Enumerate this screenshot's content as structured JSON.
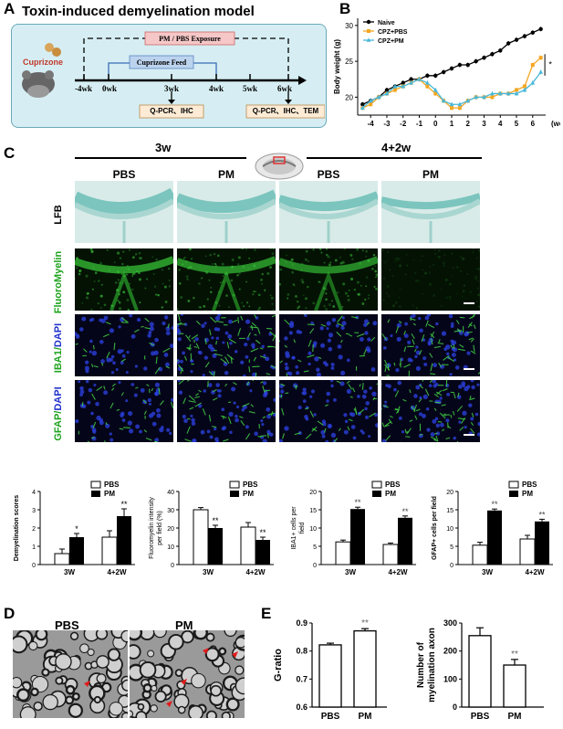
{
  "panels": {
    "A": "A",
    "B": "B",
    "C": "C",
    "D": "D",
    "E": "E"
  },
  "panelA": {
    "title": "Toxin-induced demyelination model",
    "brand": "Cuprizone",
    "pm_box": "PM / PBS Exposure",
    "feed_box": "Cuprizone Feed",
    "timeline": [
      "-4wk",
      "0wk",
      "3wk",
      "4wk",
      "5wk",
      "6wk"
    ],
    "assay1": "Q-PCR、IHC",
    "assay2": "Q-PCR、IHC、TEM"
  },
  "panelB": {
    "chart_data": {
      "type": "line",
      "ylabel": "Body weight (g)",
      "xlabel": "(weeks)",
      "x": [
        -4.5,
        -4,
        -3.5,
        -3,
        -2.5,
        -2,
        -1.5,
        -1,
        -0.5,
        0,
        0.5,
        1,
        1.5,
        2,
        2.5,
        3,
        3.5,
        4,
        4.5,
        5,
        5.5,
        6,
        6.5
      ],
      "xticks": [
        "-4",
        "-3",
        "-2",
        "-1",
        "0",
        "1",
        "2",
        "3",
        "4",
        "5",
        "6"
      ],
      "yticks": [
        "20",
        "25",
        "30"
      ],
      "ylim": [
        17.5,
        31
      ],
      "series": [
        {
          "name": "Naive",
          "color": "#000000",
          "values": [
            19,
            19.5,
            20,
            21,
            21.5,
            22,
            22.5,
            22.5,
            23,
            23,
            23.5,
            24,
            24.5,
            24.5,
            25,
            25.5,
            26,
            26.5,
            27.5,
            28,
            28.5,
            29,
            29.5
          ]
        },
        {
          "name": "CPZ+PBS",
          "color": "#f5a623",
          "values": [
            18.5,
            19,
            20,
            20.5,
            21,
            21.5,
            22,
            22.5,
            21.5,
            20.5,
            19.5,
            18.5,
            18.5,
            19.5,
            20,
            20,
            20,
            20.5,
            20.5,
            21,
            21.5,
            24.5,
            25.5
          ]
        },
        {
          "name": "CPZ+PM",
          "color": "#4ab8d8",
          "values": [
            18.5,
            19.5,
            20,
            20.5,
            21.5,
            21.5,
            22,
            22.5,
            22,
            21,
            19.5,
            19,
            19,
            19.5,
            20,
            20,
            20.5,
            20.5,
            20.5,
            20.5,
            21,
            22,
            23.5
          ]
        }
      ],
      "annotation": "*"
    }
  },
  "panelC": {
    "groups": [
      "3w",
      "4+2w"
    ],
    "cols": [
      "PBS",
      "PM",
      "PBS",
      "PM"
    ],
    "rows": {
      "lfb": "LFB",
      "fm": "FluoroMyelin",
      "iba_a": "IBA1/",
      "iba_b": "DAPI",
      "gfap_a": "GFAP/",
      "gfap_b": "DAPI"
    },
    "legend": {
      "pbs": "PBS",
      "pm": "PM"
    },
    "xcats": [
      "3W",
      "4+2W"
    ],
    "charts": [
      {
        "type": "bar",
        "ylabel": "Demyelination scores",
        "yticks": [
          "0",
          "1",
          "2",
          "3",
          "4"
        ],
        "ylim": [
          0,
          4
        ],
        "pbs": [
          0.6,
          1.5
        ],
        "pm": [
          1.5,
          2.65
        ],
        "err": [
          0.25,
          0.2,
          0.35,
          0.4
        ],
        "stars": [
          "*",
          "**"
        ]
      },
      {
        "type": "bar",
        "ylabel_a": "Fluoromyelin intensity",
        "ylabel_b": "per field (%)",
        "yticks": [
          "0",
          "10",
          "20",
          "30",
          "40"
        ],
        "ylim": [
          0,
          40
        ],
        "pbs": [
          30,
          20.5
        ],
        "pm": [
          20,
          13.5
        ],
        "err": [
          1.2,
          1.5,
          2.5,
          1.5
        ],
        "stars": [
          "**",
          "**"
        ]
      },
      {
        "type": "bar",
        "ylabel_a": "IBA1+ cells per",
        "ylabel_b": "field",
        "yticks": [
          "0",
          "5",
          "10",
          "15",
          "20"
        ],
        "ylim": [
          0,
          20
        ],
        "pbs": [
          6.2,
          5.5
        ],
        "pm": [
          15.2,
          12.8
        ],
        "err": [
          0.5,
          0.5,
          0.4,
          0.5
        ],
        "stars": [
          "**",
          "**"
        ]
      },
      {
        "type": "bar",
        "ylabel": "GFAP+ cells per field",
        "yticks": [
          "0",
          "5",
          "10",
          "15",
          "20"
        ],
        "ylim": [
          0,
          20
        ],
        "pbs": [
          5.3,
          7
        ],
        "pm": [
          14.8,
          11.8
        ],
        "err": [
          0.8,
          0.4,
          1,
          0.6
        ],
        "stars": [
          "**",
          "**"
        ]
      }
    ]
  },
  "panelD": {
    "left": "PBS",
    "right": "PM"
  },
  "panelE": {
    "chart1": {
      "type": "bar",
      "ylabel": "G-ratio",
      "yticks": [
        "0.6",
        "0.7",
        "0.8",
        "0.9"
      ],
      "ylim": [
        0.6,
        0.9
      ],
      "categories": [
        "PBS",
        "PM"
      ],
      "values": [
        0.822,
        0.872
      ],
      "err": [
        0.006,
        0.008
      ],
      "stars": "**"
    },
    "chart2": {
      "type": "bar",
      "ylabel_a": "Number of",
      "ylabel_b": "myelination axon",
      "yticks": [
        "0",
        "100",
        "200",
        "300"
      ],
      "ylim": [
        0,
        300
      ],
      "categories": [
        "PBS",
        "PM"
      ],
      "values": [
        255,
        150
      ],
      "err": [
        28,
        20
      ],
      "stars": "**"
    }
  }
}
